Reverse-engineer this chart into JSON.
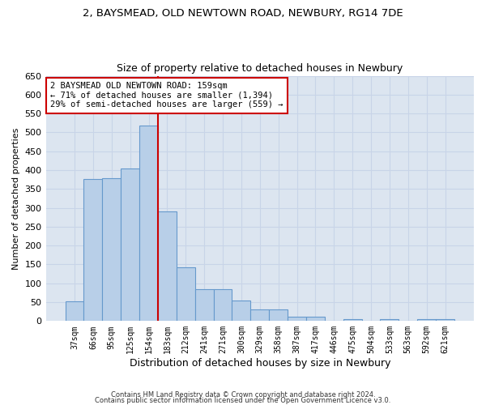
{
  "title1": "2, BAYSMEAD, OLD NEWTOWN ROAD, NEWBURY, RG14 7DE",
  "title2": "Size of property relative to detached houses in Newbury",
  "xlabel": "Distribution of detached houses by size in Newbury",
  "ylabel": "Number of detached properties",
  "categories": [
    "37sqm",
    "66sqm",
    "95sqm",
    "125sqm",
    "154sqm",
    "183sqm",
    "212sqm",
    "241sqm",
    "271sqm",
    "300sqm",
    "329sqm",
    "358sqm",
    "387sqm",
    "417sqm",
    "446sqm",
    "475sqm",
    "504sqm",
    "533sqm",
    "563sqm",
    "592sqm",
    "621sqm"
  ],
  "values": [
    52,
    376,
    378,
    404,
    519,
    290,
    142,
    84,
    84,
    55,
    30,
    30,
    11,
    11,
    0,
    5,
    0,
    5,
    0,
    5,
    5
  ],
  "bar_color": "#b8cfe8",
  "bar_edge_color": "#6699cc",
  "grid_color": "#c8d4e8",
  "background_color": "#dce5f0",
  "vline_x": 4.5,
  "vline_color": "#cc0000",
  "annotation_text": "2 BAYSMEAD OLD NEWTOWN ROAD: 159sqm\n← 71% of detached houses are smaller (1,394)\n29% of semi-detached houses are larger (559) →",
  "annotation_box_color": "#ffffff",
  "annotation_box_edge_color": "#cc0000",
  "ylim": [
    0,
    650
  ],
  "yticks": [
    0,
    50,
    100,
    150,
    200,
    250,
    300,
    350,
    400,
    450,
    500,
    550,
    600,
    650
  ],
  "footer1": "Contains HM Land Registry data © Crown copyright and database right 2024.",
  "footer2": "Contains public sector information licensed under the Open Government Licence v3.0."
}
